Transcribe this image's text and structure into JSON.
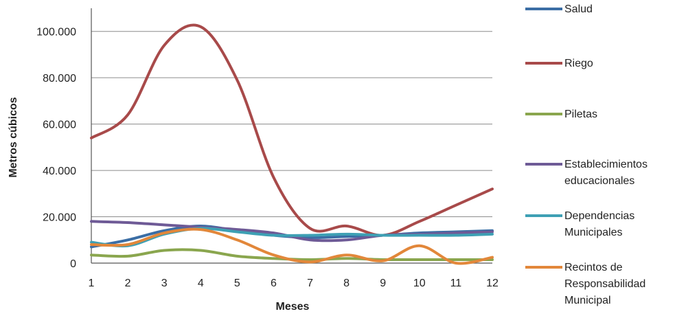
{
  "chart_data": {
    "type": "line",
    "title": "",
    "xlabel": "Meses",
    "ylabel": "Metros cúbicos",
    "x": [
      1,
      2,
      3,
      4,
      5,
      6,
      7,
      8,
      9,
      10,
      11,
      12
    ],
    "xlim": [
      1,
      12
    ],
    "ylim": [
      0,
      110000
    ],
    "y_ticks": [
      0,
      20000,
      40000,
      60000,
      80000,
      100000
    ],
    "y_tick_labels": [
      "0",
      "20.000",
      "40.000",
      "60.000",
      "80.000",
      "100.000"
    ],
    "grid": "horizontal",
    "legend_position": "right",
    "series": [
      {
        "name": "Salud",
        "color": "#3b6ea5",
        "legend_lines": [
          "Salud"
        ],
        "values": [
          7000,
          10000,
          14000,
          16000,
          14000,
          12000,
          11000,
          11500,
          12000,
          13000,
          13500,
          14000
        ]
      },
      {
        "name": "Riego",
        "color": "#a84a4a",
        "legend_lines": [
          "Riego"
        ],
        "values": [
          54000,
          64000,
          94000,
          102000,
          79000,
          37000,
          15000,
          16000,
          12000,
          18000,
          25000,
          32000
        ]
      },
      {
        "name": "Piletas",
        "color": "#8aa64e",
        "legend_lines": [
          "Piletas"
        ],
        "values": [
          3500,
          3000,
          5500,
          5500,
          3000,
          2000,
          1500,
          2000,
          1500,
          1500,
          1500,
          1500
        ]
      },
      {
        "name": "Establecimientos educacionales",
        "color": "#6e5a96",
        "legend_lines": [
          "Establecimientos",
          "educacionales"
        ],
        "values": [
          18000,
          17500,
          16500,
          15500,
          14500,
          13000,
          10000,
          10000,
          12000,
          12500,
          13000,
          13500
        ]
      },
      {
        "name": "Dependencias Municipales",
        "color": "#3ea0b4",
        "legend_lines": [
          "Dependencias",
          "Municipales"
        ],
        "values": [
          9000,
          7500,
          12500,
          15000,
          13500,
          12000,
          12000,
          12500,
          12000,
          12000,
          12000,
          12500
        ]
      },
      {
        "name": "Recintos de Responsabilidad Municipal",
        "color": "#e2873a",
        "legend_lines": [
          "Recintos de",
          "Responsabilidad",
          "Municipal"
        ],
        "values": [
          8000,
          8000,
          13000,
          14500,
          10000,
          3500,
          500,
          3500,
          1000,
          7500,
          0,
          2500
        ]
      }
    ]
  }
}
